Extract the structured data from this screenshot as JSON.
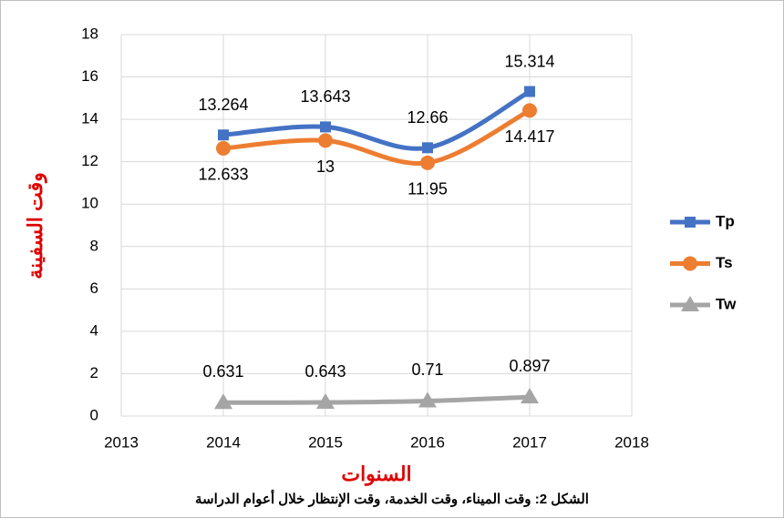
{
  "chart_data": {
    "type": "line",
    "title": "الشكل 2: وقت الميناء، وقت الخدمة، وقت الإنتظار خلال أعوام الدراسة",
    "x_label": "السنوات",
    "y_label": "وقت السفينة",
    "x": [
      2014,
      2015,
      2016,
      2017
    ],
    "series": [
      {
        "name": "Tp",
        "color": "#4472c4",
        "marker": "square",
        "values": [
          13.264,
          13.643,
          12.66,
          15.314
        ],
        "label_position": "above"
      },
      {
        "name": "Ts",
        "color": "#ed7d31",
        "marker": "circle",
        "values": [
          12.633,
          13,
          11.95,
          14.417
        ],
        "label_position": "below"
      },
      {
        "name": "Tw",
        "color": "#a5a5a5",
        "marker": "triangle",
        "values": [
          0.631,
          0.643,
          0.71,
          0.897
        ],
        "label_position": "above"
      }
    ],
    "xlim": [
      2013,
      2018
    ],
    "xticks": [
      2013,
      2014,
      2015,
      2016,
      2017,
      2018
    ],
    "ylim": [
      0,
      18
    ],
    "yticks": [
      0,
      2,
      4,
      6,
      8,
      10,
      12,
      14,
      16,
      18
    ],
    "grid": true,
    "smooth": true,
    "legend": "right"
  }
}
